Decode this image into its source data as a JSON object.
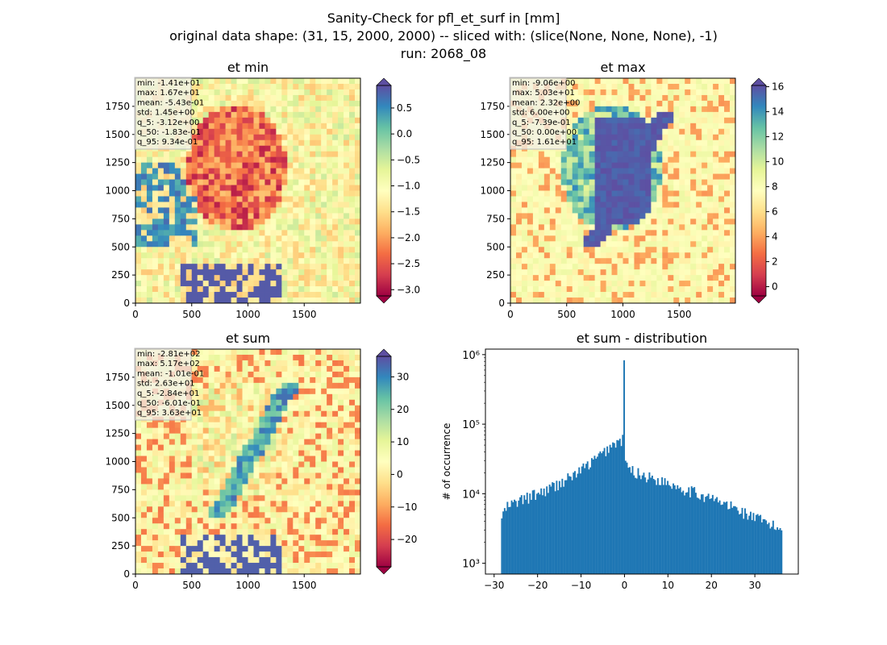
{
  "figure": {
    "title_lines": [
      "Sanity-Check for pfl_et_surf in [mm]",
      "original data shape: (31, 15, 2000, 2000) -- sliced with: (slice(None, None, None), -1)",
      "run: 2068_08"
    ]
  },
  "chart_data": [
    {
      "type": "heatmap",
      "title": "et min",
      "xlim": [
        0,
        2000
      ],
      "ylim": [
        0,
        2000
      ],
      "xticks": [
        0,
        500,
        1000,
        1500
      ],
      "yticks": [
        0,
        250,
        500,
        750,
        1000,
        1250,
        1500,
        1750
      ],
      "colorbar": {
        "range": [
          -3.12,
          0.934
        ],
        "ticks": [
          "0.5",
          "0.0",
          "−0.5",
          "−1.0",
          "−1.5",
          "−2.0",
          "−2.5",
          "−3.0"
        ],
        "tick_values": [
          0.5,
          0,
          -0.5,
          -1,
          -1.5,
          -2,
          -2.5,
          -3
        ],
        "colormap": "Spectral",
        "extend": "both"
      },
      "stats": [
        "min: -1.41e+01",
        "max: 1.67e+01",
        "mean: -5.43e-01",
        "std: 1.45e+00",
        "q_5: -3.12e+00",
        "q_50: -1.83e-01",
        "q_95: 9.34e-01"
      ]
    },
    {
      "type": "heatmap",
      "title": "et max",
      "xlim": [
        0,
        2000
      ],
      "ylim": [
        0,
        2000
      ],
      "xticks": [
        0,
        500,
        1000,
        1500
      ],
      "yticks": [
        0,
        250,
        500,
        750,
        1000,
        1250,
        1500,
        1750
      ],
      "colorbar": {
        "range": [
          -0.739,
          16.1
        ],
        "ticks": [
          "16",
          "14",
          "12",
          "10",
          "8",
          "6",
          "4",
          "2",
          "0"
        ],
        "tick_values": [
          16,
          14,
          12,
          10,
          8,
          6,
          4,
          2,
          0
        ],
        "colormap": "Spectral",
        "extend": "both"
      },
      "stats": [
        "min: -9.06e+00",
        "max: 5.03e+01",
        "mean: 2.32e+00",
        "std: 6.00e+00",
        "q_5: -7.39e-01",
        "q_50: 0.00e+00",
        "q_95: 1.61e+01"
      ]
    },
    {
      "type": "heatmap",
      "title": "et sum",
      "xlim": [
        0,
        2000
      ],
      "ylim": [
        0,
        2000
      ],
      "xticks": [
        0,
        500,
        1000,
        1500
      ],
      "yticks": [
        0,
        250,
        500,
        750,
        1000,
        1250,
        1500,
        1750
      ],
      "colorbar": {
        "range": [
          -28.4,
          36.3
        ],
        "ticks": [
          "30",
          "20",
          "10",
          "0",
          "−10",
          "−20"
        ],
        "tick_values": [
          30,
          20,
          10,
          0,
          -10,
          -20
        ],
        "colormap": "Spectral",
        "extend": "both"
      },
      "stats": [
        "min: -2.81e+02",
        "max: 5.17e+02",
        "mean: -1.01e-01",
        "std: 2.63e+01",
        "q_5: -2.84e+01",
        "q_50: -6.01e-01",
        "q_95: 3.63e+01"
      ]
    },
    {
      "type": "bar",
      "title": "et sum - distribution",
      "ylabel": "# of occurrence",
      "xlabel": "",
      "xlim": [
        -32,
        40
      ],
      "ylim_log": [
        700,
        1200000
      ],
      "yscale": "log",
      "xticks": [
        -30,
        -20,
        -10,
        0,
        10,
        20,
        30
      ],
      "xtick_labels": [
        "−30",
        "−20",
        "−10",
        "0",
        "10",
        "20",
        "30"
      ],
      "ytick_labels": [
        "10³",
        "10⁴",
        "10⁵",
        "10⁶"
      ],
      "ytick_values": [
        1000,
        10000,
        100000,
        1000000
      ],
      "color": "#1f77b4",
      "bin_range": [
        -28.4,
        36.3
      ],
      "bins": 200,
      "profile_points": [
        [
          -28.4,
          4500
        ],
        [
          -27.0,
          6500
        ],
        [
          -24.0,
          8000
        ],
        [
          -20.0,
          10000
        ],
        [
          -16.0,
          13000
        ],
        [
          -12.0,
          18000
        ],
        [
          -8.0,
          27000
        ],
        [
          -5.0,
          38000
        ],
        [
          -3.0,
          50000
        ],
        [
          -1.5,
          55000
        ],
        [
          -0.3,
          60000
        ],
        [
          0.3,
          25000
        ],
        [
          2.0,
          21000
        ],
        [
          6.0,
          17000
        ],
        [
          10.0,
          14500
        ],
        [
          16.0,
          10500
        ],
        [
          20.0,
          8500
        ],
        [
          26.0,
          6000
        ],
        [
          30.0,
          4500
        ],
        [
          36.3,
          3000
        ]
      ],
      "spike": {
        "x": -0.2,
        "value": 830000
      }
    }
  ]
}
